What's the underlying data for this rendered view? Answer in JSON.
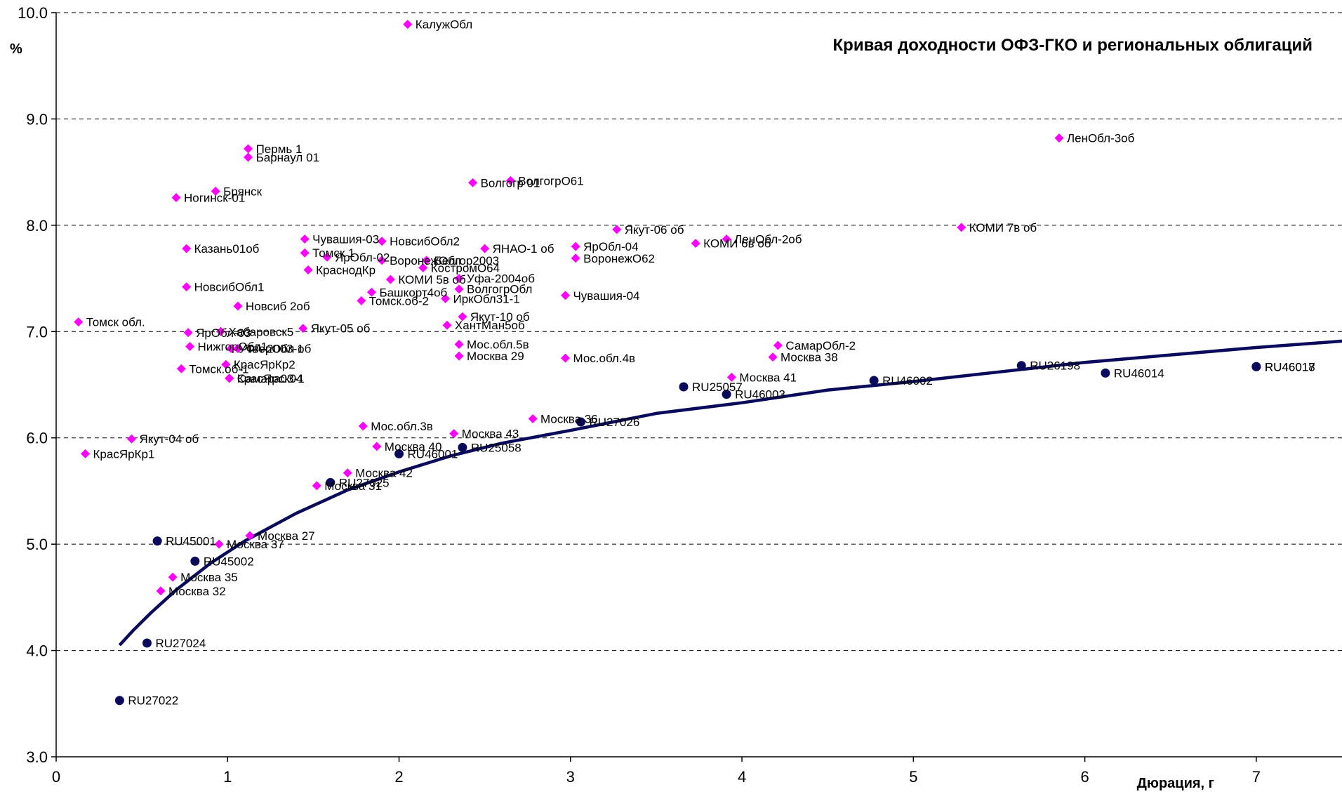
{
  "chart_data": {
    "type": "scatter",
    "title": "Кривая доходности ОФЗ-ГКО и региональных облигаций",
    "xlabel": "Дюрация, г",
    "ylabel": "%",
    "xlim": [
      0,
      7.5
    ],
    "ylim": [
      3.0,
      10.0
    ],
    "x_ticks": [
      "0",
      "1",
      "2",
      "3",
      "4",
      "5",
      "6",
      "7"
    ],
    "y_ticks": [
      "3.0",
      "4.0",
      "5.0",
      "6.0",
      "7.0",
      "8.0",
      "9.0",
      "10.0"
    ],
    "grid": "horizontal-dashed",
    "colors": {
      "regional": "#ff00ff",
      "ofz": "#0a0a5c",
      "curve": "#0a0a5c"
    },
    "series": [
      {
        "points": [
          {
            "x": 2.05,
            "y": 9.89,
            "label": "КалужОбл"
          },
          {
            "x": 5.85,
            "y": 8.82,
            "label": "ЛенОбл-3об"
          },
          {
            "x": 1.12,
            "y": 8.72,
            "label": "Пермь 1"
          },
          {
            "x": 1.12,
            "y": 8.64,
            "label": "Барнаул 01"
          },
          {
            "x": 2.43,
            "y": 8.4,
            "label": "Волгогр 01"
          },
          {
            "x": 2.65,
            "y": 8.42,
            "label": "ВолгогрО61"
          },
          {
            "x": 0.93,
            "y": 8.32,
            "label": "Брянск"
          },
          {
            "x": 0.7,
            "y": 8.26,
            "label": "Ногинск-01"
          },
          {
            "x": 1.45,
            "y": 7.87,
            "label": "Чувашия-03"
          },
          {
            "x": 1.45,
            "y": 7.74,
            "label": "Томск 1"
          },
          {
            "x": 1.58,
            "y": 7.7,
            "label": "ЯрОбл-02"
          },
          {
            "x": 1.47,
            "y": 7.58,
            "label": "КраснодКр"
          },
          {
            "x": 0.76,
            "y": 7.78,
            "label": "Казань01об"
          },
          {
            "x": 0.76,
            "y": 7.42,
            "label": "НовсибОбл1"
          },
          {
            "x": 1.06,
            "y": 7.24,
            "label": "Новсиб 2об"
          },
          {
            "x": 0.13,
            "y": 7.09,
            "label": "Томск обл."
          },
          {
            "x": 1.9,
            "y": 7.85,
            "label": "НовсибОбл2"
          },
          {
            "x": 1.9,
            "y": 7.67,
            "label": "ВоронежОбл"
          },
          {
            "x": 2.16,
            "y": 7.67,
            "label": "Белгор2003"
          },
          {
            "x": 2.14,
            "y": 7.6,
            "label": "КостромО64"
          },
          {
            "x": 1.95,
            "y": 7.49,
            "label": "КОМИ 5в об"
          },
          {
            "x": 2.35,
            "y": 7.5,
            "label": "Уфа-2004об"
          },
          {
            "x": 1.84,
            "y": 7.37,
            "label": "Башкорт4об"
          },
          {
            "x": 1.78,
            "y": 7.29,
            "label": "Томск.об-2"
          },
          {
            "x": 2.27,
            "y": 7.31,
            "label": "ИркОбл31-1"
          },
          {
            "x": 2.35,
            "y": 7.4,
            "label": "ВолгогрОбл"
          },
          {
            "x": 2.5,
            "y": 7.78,
            "label": "ЯНАО-1 об"
          },
          {
            "x": 3.03,
            "y": 7.8,
            "label": "ЯрОбл-04"
          },
          {
            "x": 3.03,
            "y": 7.69,
            "label": "ВоронежО62"
          },
          {
            "x": 2.97,
            "y": 7.34,
            "label": "Чувашия-04"
          },
          {
            "x": 3.27,
            "y": 7.96,
            "label": "Якут-06 об"
          },
          {
            "x": 3.73,
            "y": 7.83,
            "label": "КОМИ 6в об"
          },
          {
            "x": 3.91,
            "y": 7.87,
            "label": "ЛенОбл-2об"
          },
          {
            "x": 5.28,
            "y": 7.98,
            "label": "КОМИ 7в об"
          },
          {
            "x": 2.37,
            "y": 7.14,
            "label": "Якут-10 об"
          },
          {
            "x": 2.28,
            "y": 7.06,
            "label": "ХантМан5об"
          },
          {
            "x": 1.44,
            "y": 7.03,
            "label": "Якут-05 об"
          },
          {
            "x": 0.96,
            "y": 7.0,
            "label": "Хабаровск5"
          },
          {
            "x": 0.77,
            "y": 6.99,
            "label": "ЯрОбл-03"
          },
          {
            "x": 0.78,
            "y": 6.86,
            "label": "НижгорОбл1"
          },
          {
            "x": 1.02,
            "y": 6.84,
            "label": "УФА-2003-1"
          },
          {
            "x": 1.06,
            "y": 6.84,
            "label": "ТверОбл об"
          },
          {
            "x": 2.35,
            "y": 6.88,
            "label": "Мос.обл.5в"
          },
          {
            "x": 2.35,
            "y": 6.77,
            "label": "Москва 29"
          },
          {
            "x": 2.97,
            "y": 6.75,
            "label": "Мос.обл.4в"
          },
          {
            "x": 0.99,
            "y": 6.69,
            "label": "КрасЯрКр2"
          },
          {
            "x": 0.73,
            "y": 6.65,
            "label": "Томск.об-1"
          },
          {
            "x": 1.01,
            "y": 6.56,
            "label": "Самара03-1"
          },
          {
            "x": 1.01,
            "y": 6.56,
            "label": "КрасЯрск04"
          },
          {
            "x": 4.21,
            "y": 6.87,
            "label": "СамарОбл-2"
          },
          {
            "x": 4.18,
            "y": 6.76,
            "label": "Москва 38"
          },
          {
            "x": 3.94,
            "y": 6.57,
            "label": "Москва 41"
          },
          {
            "x": 2.78,
            "y": 6.18,
            "label": "Москва 36"
          },
          {
            "x": 1.79,
            "y": 6.11,
            "label": "Мос.обл.3в"
          },
          {
            "x": 2.32,
            "y": 6.04,
            "label": "Москва 43"
          },
          {
            "x": 1.87,
            "y": 5.92,
            "label": "Москва 40"
          },
          {
            "x": 0.44,
            "y": 5.99,
            "label": "Якут-04 об"
          },
          {
            "x": 0.17,
            "y": 5.85,
            "label": "КрасЯрКр1"
          },
          {
            "x": 1.7,
            "y": 5.67,
            "label": "Москва 42"
          },
          {
            "x": 1.52,
            "y": 5.55,
            "label": "Москва 31"
          },
          {
            "x": 1.13,
            "y": 5.08,
            "label": "Москва 27"
          },
          {
            "x": 0.95,
            "y": 5.0,
            "label": "Москва 37"
          },
          {
            "x": 0.68,
            "y": 4.69,
            "label": "Москва 35"
          },
          {
            "x": 0.61,
            "y": 4.56,
            "label": "Москва 32"
          }
        ]
      },
      {
        "points": [
          {
            "x": 0.37,
            "y": 3.53,
            "label": "RU27022"
          },
          {
            "x": 0.53,
            "y": 4.07,
            "label": "RU27024"
          },
          {
            "x": 0.59,
            "y": 5.03,
            "label": "RU45001"
          },
          {
            "x": 0.81,
            "y": 4.84,
            "label": "RU45002"
          },
          {
            "x": 1.6,
            "y": 5.58,
            "label": "RU27025"
          },
          {
            "x": 2.0,
            "y": 5.85,
            "label": "RU46001"
          },
          {
            "x": 2.37,
            "y": 5.91,
            "label": "RU25058"
          },
          {
            "x": 3.06,
            "y": 6.15,
            "label": "RU27026"
          },
          {
            "x": 3.66,
            "y": 6.48,
            "label": "RU25057"
          },
          {
            "x": 3.91,
            "y": 6.41,
            "label": "RU46003"
          },
          {
            "x": 4.77,
            "y": 6.54,
            "label": "RU46002"
          },
          {
            "x": 5.63,
            "y": 6.68,
            "label": "RU26198"
          },
          {
            "x": 6.12,
            "y": 6.61,
            "label": "RU46014"
          },
          {
            "x": 7.0,
            "y": 6.67,
            "label": "RU46017"
          },
          {
            "x": 7.0,
            "y": 6.67,
            "label": "RU46018"
          }
        ]
      },
      {
        "type": "line",
        "x": [
          0.37,
          0.45,
          0.55,
          0.7,
          0.9,
          1.1,
          1.4,
          1.7,
          2.0,
          2.3,
          2.6,
          3.0,
          3.5,
          4.0,
          4.5,
          5.0,
          5.5,
          6.0,
          6.5,
          7.0,
          7.5
        ],
        "values": [
          4.05,
          4.19,
          4.35,
          4.57,
          4.82,
          5.03,
          5.29,
          5.51,
          5.68,
          5.83,
          5.95,
          6.07,
          6.23,
          6.33,
          6.45,
          6.53,
          6.62,
          6.71,
          6.78,
          6.85,
          6.91
        ]
      }
    ]
  }
}
